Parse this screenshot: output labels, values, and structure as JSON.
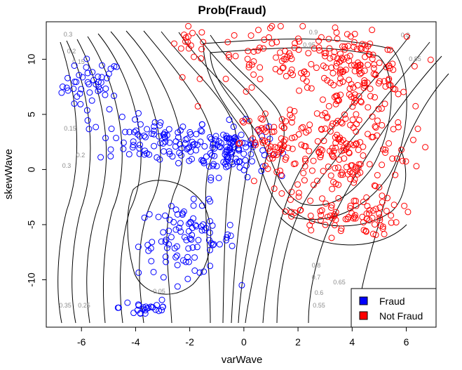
{
  "chart_data": {
    "type": "scatter",
    "title": "Prob(Fraud)",
    "xlabel": "varWave",
    "ylabel": "skewWave",
    "xlim": [
      -7.3,
      7.1
    ],
    "ylim": [
      -14.3,
      13.4
    ],
    "x_ticks": [
      -6,
      -4,
      -2,
      0,
      2,
      4,
      6
    ],
    "y_ticks": [
      -10,
      -5,
      0,
      5,
      10
    ],
    "grid": false,
    "legend_position": "bottom-right",
    "series": [
      {
        "name": "Fraud",
        "color": "#0000ff",
        "marker": "open-circle",
        "clusters": [
          {
            "center": [
              -5.6,
              7.6
            ],
            "spread": [
              0.55,
              1.2
            ],
            "count": 45
          },
          {
            "center": [
              -3.2,
              2.6
            ],
            "spread": [
              1.1,
              1.0
            ],
            "count": 90
          },
          {
            "center": [
              -0.5,
              1.8
            ],
            "spread": [
              0.7,
              1.2
            ],
            "count": 110
          },
          {
            "center": [
              -2.1,
              -6.4
            ],
            "spread": [
              0.9,
              1.6
            ],
            "count": 95
          },
          {
            "center": [
              -3.6,
              -12.5
            ],
            "spread": [
              0.5,
              0.5
            ],
            "count": 25
          }
        ]
      },
      {
        "name": "Not Fraud",
        "color": "#ff0000",
        "marker": "open-circle",
        "clusters": [
          {
            "center": [
              -1.9,
              11.4
            ],
            "spread": [
              0.35,
              0.8
            ],
            "count": 15
          },
          {
            "center": [
              1.7,
              9.8
            ],
            "spread": [
              1.5,
              1.6
            ],
            "count": 90
          },
          {
            "center": [
              4.2,
              8.6
            ],
            "spread": [
              0.9,
              1.7
            ],
            "count": 130
          },
          {
            "center": [
              3.6,
              1.8
            ],
            "spread": [
              1.3,
              2.4
            ],
            "count": 160
          },
          {
            "center": [
              3.7,
              -4.2
            ],
            "spread": [
              1.0,
              0.9
            ],
            "count": 80
          },
          {
            "center": [
              1.2,
              2.2
            ],
            "spread": [
              0.6,
              1.5
            ],
            "count": 60
          }
        ]
      }
    ],
    "contour_labels": [
      "0.3",
      "0.2",
      "0.15",
      "0.15",
      "0.2",
      "0.3",
      "0.35",
      "0.25",
      "0.05",
      "0.9",
      "0.95",
      "0.8",
      "0.85",
      "0.8",
      "0.7",
      "0.65",
      "0.6",
      "0.55"
    ]
  },
  "legend": {
    "items": [
      {
        "label": "Fraud",
        "color": "#0000ff"
      },
      {
        "label": "Not Fraud",
        "color": "#ff0000"
      }
    ]
  }
}
